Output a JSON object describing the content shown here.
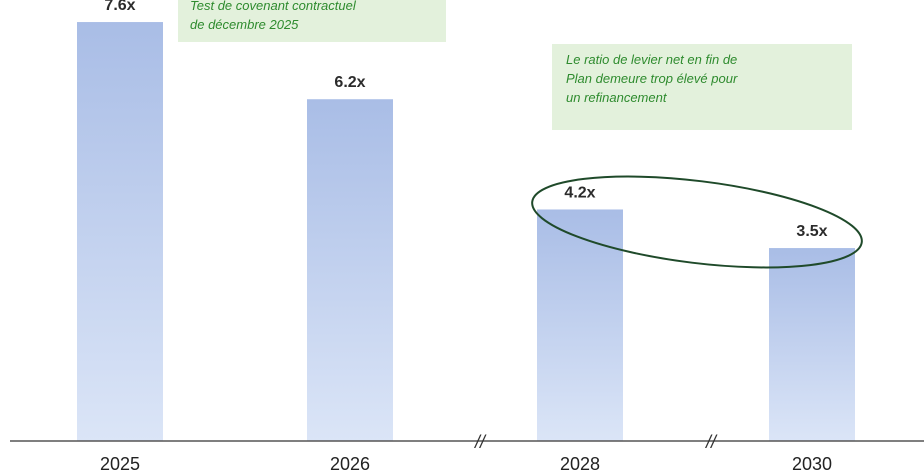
{
  "chart_data": {
    "type": "bar",
    "title": "",
    "xlabel": "",
    "ylabel": "",
    "categories": [
      "2025",
      "2026",
      "2028",
      "2030"
    ],
    "values": [
      7.6,
      6.2,
      4.2,
      3.5
    ],
    "data_labels": [
      "7.6x",
      "6.2x",
      "4.2x",
      "3.5x"
    ],
    "ylim": [
      0,
      8.0
    ],
    "grid": false,
    "legend": "none",
    "axis_breaks_after": [
      "2026",
      "2028"
    ],
    "axis_break_symbol": "//",
    "colors": {
      "bar_top": "#a9bde6",
      "bar_bottom": "#dbe5f7",
      "axis": "#555555",
      "ellipse": "#1f4a2a"
    },
    "highlight": {
      "categories": [
        "2028",
        "2030"
      ],
      "shape": "ellipse"
    }
  },
  "annotations": {
    "top_callout": "Test de covenant contractuel\nde décembre 2025",
    "right_callout": "Le ratio de levier net en fin de\nPlan demeure trop élevé pour\nun refinancement",
    "colors": {
      "background": "#e3f1dc",
      "text": "#2e8b2e"
    }
  }
}
